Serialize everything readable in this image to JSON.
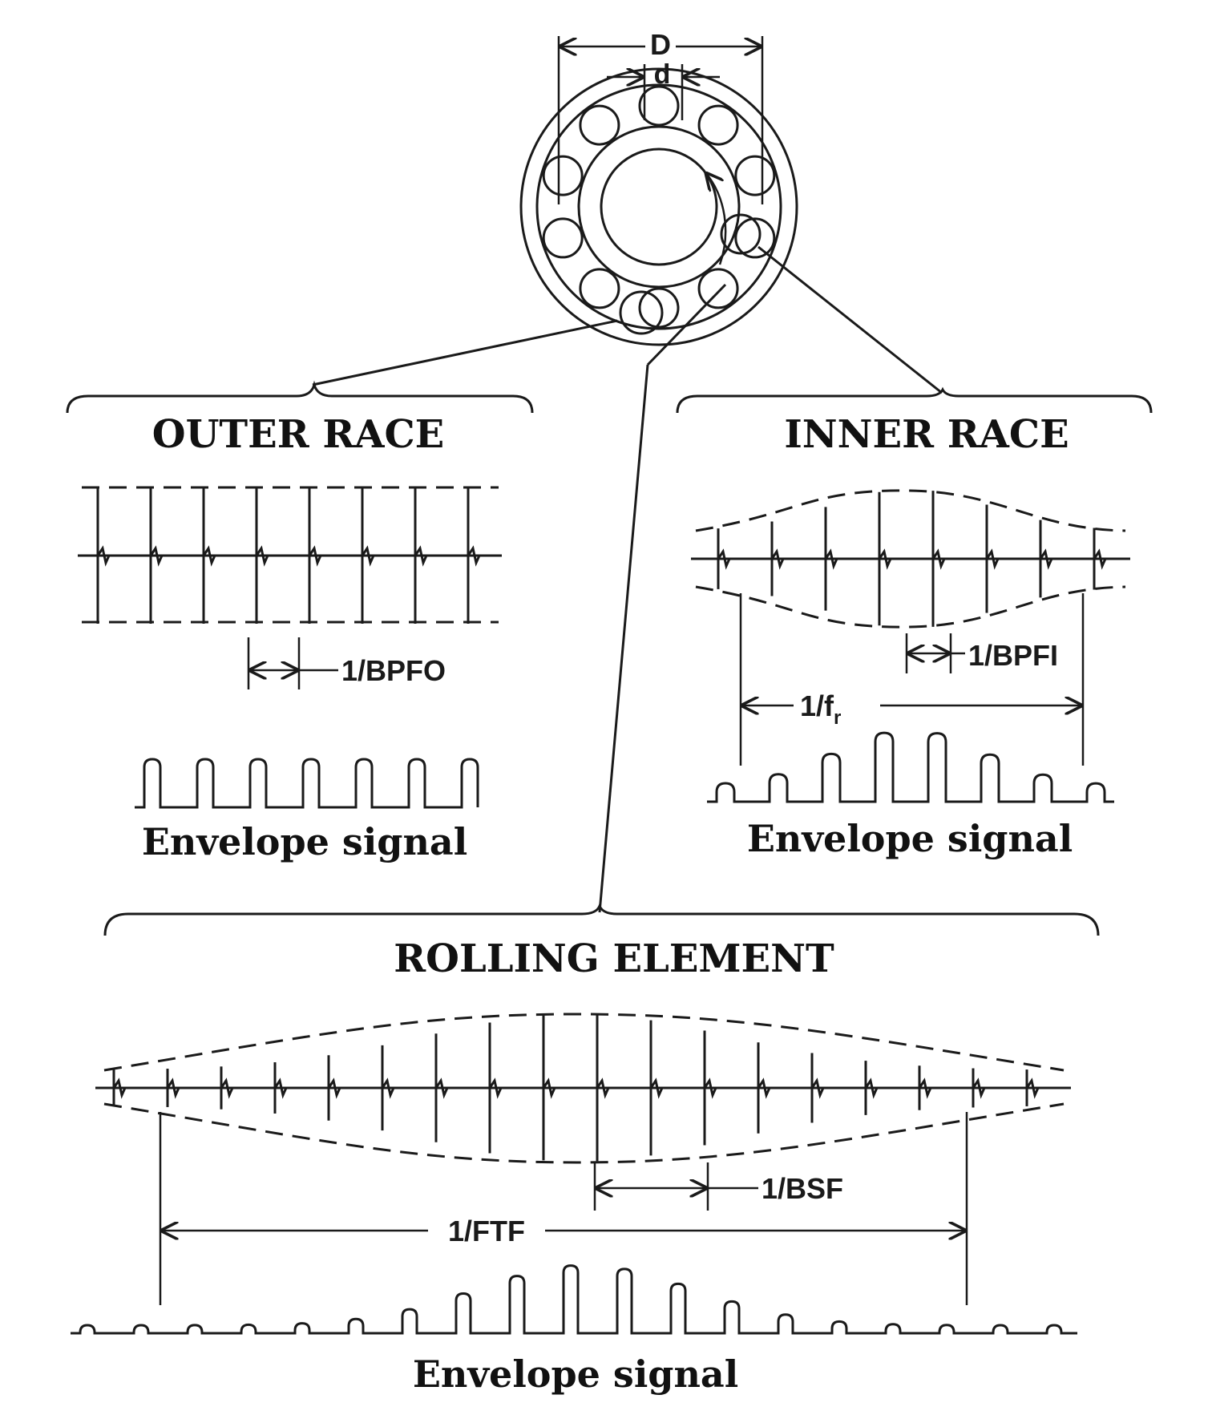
{
  "labels": {
    "outer_diameter": "D",
    "ball_diameter": "d",
    "outer_race_title": "OUTER RACE",
    "inner_race_title": "INNER RACE",
    "rolling_element_title": "ROLLING ELEMENT",
    "bpfo": "1/BPFO",
    "bpfi": "1/BPFI",
    "fr_prefix": "1/f",
    "fr_subscript": "r",
    "bsf": "1/BSF",
    "ftf": "1/FTF",
    "envelope_outer": "Envelope signal",
    "envelope_inner": "Envelope signal",
    "envelope_rolling": "Envelope signal"
  },
  "colors": {
    "line": "#1a1a1a",
    "background": "#ffffff"
  }
}
